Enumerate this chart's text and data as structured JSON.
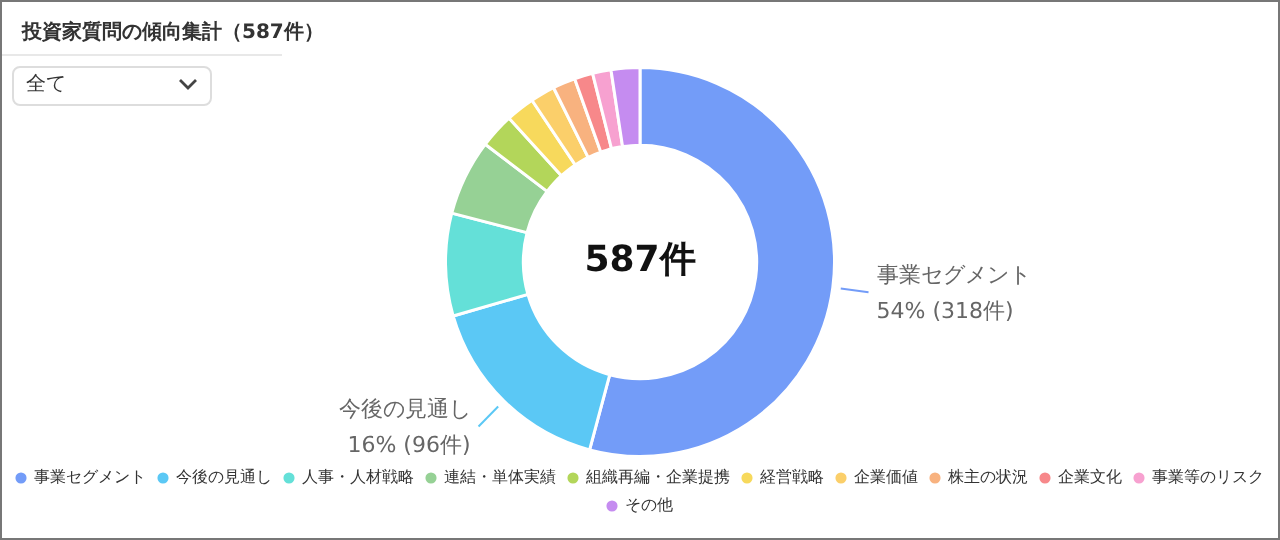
{
  "chart_data": {
    "type": "donut",
    "title": "投資家質問の傾向集計（587件）",
    "categories": [
      "事業セグメント",
      "今後の見通し",
      "人事・人材戦略",
      "連結・単体実績",
      "組織再編・企業提携",
      "経営戦略",
      "企業価値",
      "株主の状況",
      "企業文化",
      "事業等のリスク",
      "その他"
    ],
    "values": [
      318,
      96,
      50,
      37,
      17,
      14,
      12,
      11,
      9,
      9,
      14
    ],
    "colors": [
      "#739cf8",
      "#5bc8f5",
      "#64e0d8",
      "#96d195",
      "#b3d65a",
      "#f7d95c",
      "#fbcf6a",
      "#f8b27f",
      "#f7888a",
      "#f7a1d0",
      "#c58cf0"
    ],
    "value_labels": [
      "54% (318件)",
      "16% (96件)",
      null,
      null,
      null,
      null,
      null,
      null,
      null,
      null,
      null
    ],
    "annotations": [
      "587件",
      "全て"
    ],
    "legend": "bottom"
  }
}
